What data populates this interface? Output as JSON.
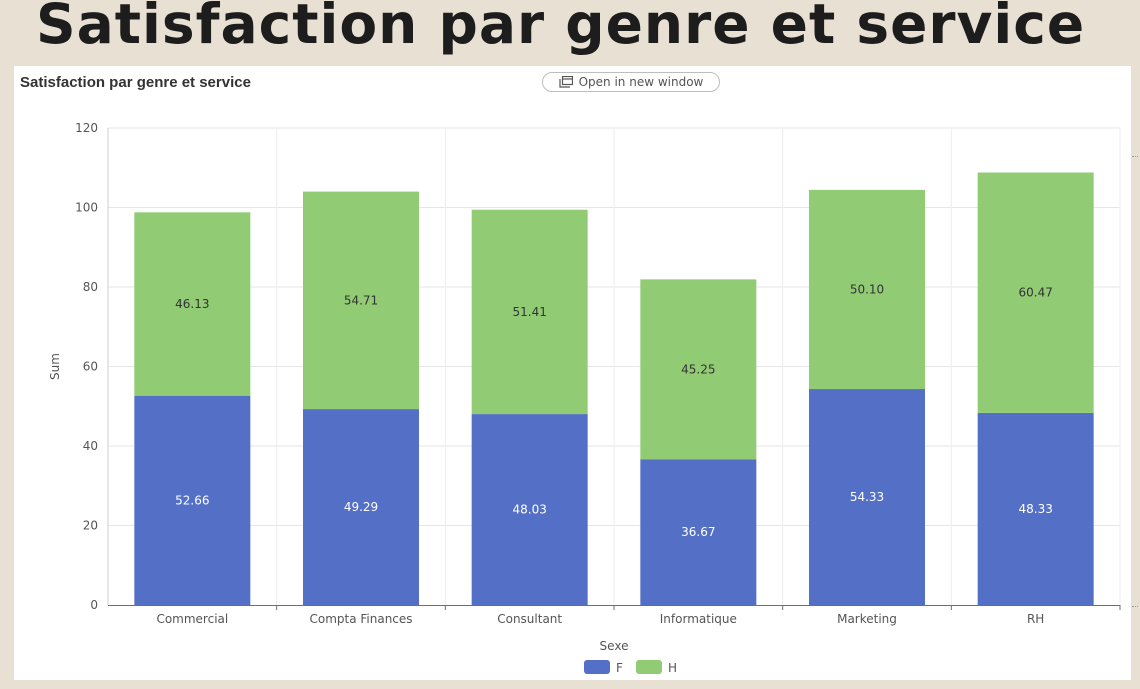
{
  "slide": {
    "title": "Satisfaction par genre et service"
  },
  "panel": {
    "title": "Satisfaction par genre et service",
    "open_button_label": "Open in new window"
  },
  "colors": {
    "F": "#5470c6",
    "H": "#91cc75",
    "label_on_F": "#ffffff",
    "label_on_H": "#333333"
  },
  "chart_data": {
    "type": "bar",
    "stacked": true,
    "categories": [
      "Commercial",
      "Compta Finances",
      "Consultant",
      "Informatique",
      "Marketing",
      "RH"
    ],
    "series": [
      {
        "name": "F",
        "values": [
          52.66,
          49.29,
          48.03,
          36.67,
          54.33,
          48.33
        ]
      },
      {
        "name": "H",
        "values": [
          46.13,
          54.71,
          51.41,
          45.25,
          50.1,
          60.47
        ]
      }
    ],
    "value_labels": {
      "F": [
        "52.66",
        "49.29",
        "48.03",
        "36.67",
        "54.33",
        "48.33"
      ],
      "H": [
        "46.13",
        "54.71",
        "51.41",
        "45.25",
        "50.10",
        "60.47"
      ]
    },
    "title": "Satisfaction par genre et service",
    "xlabel": "Sexe",
    "ylabel": "Sum",
    "ylim": [
      0,
      120
    ],
    "yticks": [
      0,
      20,
      40,
      60,
      80,
      100,
      120
    ],
    "grid": true,
    "legend": {
      "position": "bottom",
      "items": [
        "F",
        "H"
      ]
    }
  }
}
